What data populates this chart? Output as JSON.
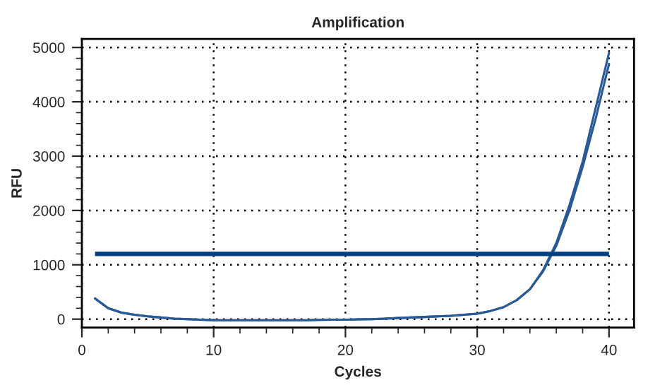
{
  "chart_data": {
    "type": "line",
    "title": "Amplification",
    "xlabel": "Cycles",
    "ylabel": "RFU",
    "x": [
      1,
      2,
      3,
      4,
      5,
      6,
      7,
      8,
      9,
      10,
      11,
      12,
      13,
      14,
      15,
      16,
      17,
      18,
      19,
      20,
      21,
      22,
      23,
      24,
      25,
      26,
      27,
      28,
      29,
      30,
      31,
      32,
      33,
      34,
      35,
      36,
      37,
      38,
      39,
      40
    ],
    "series": [
      {
        "color": "#2a5a95",
        "values": [
          380,
          200,
          120,
          80,
          50,
          30,
          10,
          0,
          -10,
          -20,
          -20,
          -20,
          -20,
          -20,
          -20,
          -20,
          -20,
          -15,
          -10,
          -10,
          -5,
          0,
          10,
          20,
          30,
          40,
          50,
          60,
          80,
          100,
          150,
          220,
          350,
          550,
          900,
          1400,
          2100,
          2900,
          3900,
          4900
        ]
      },
      {
        "color": "#2a5a95",
        "values": [
          380,
          200,
          120,
          80,
          50,
          30,
          10,
          0,
          -10,
          -20,
          -20,
          -20,
          -20,
          -20,
          -20,
          -20,
          -20,
          -15,
          -10,
          -10,
          -5,
          0,
          10,
          20,
          30,
          40,
          50,
          60,
          80,
          100,
          150,
          220,
          350,
          550,
          880,
          1350,
          2000,
          2800,
          3700,
          4700
        ]
      }
    ],
    "ref_lines": [
      {
        "axis": "y",
        "value": 1200,
        "color": "#003f7f"
      }
    ],
    "xlim": [
      0,
      41.9
    ],
    "ylim": [
      -156,
      5156
    ],
    "xticks": [
      0,
      10,
      20,
      30,
      40
    ],
    "yticks": [
      0,
      1000,
      2000,
      3000,
      4000,
      5000
    ],
    "grid": true,
    "line_style": "solid",
    "marker": "none"
  }
}
